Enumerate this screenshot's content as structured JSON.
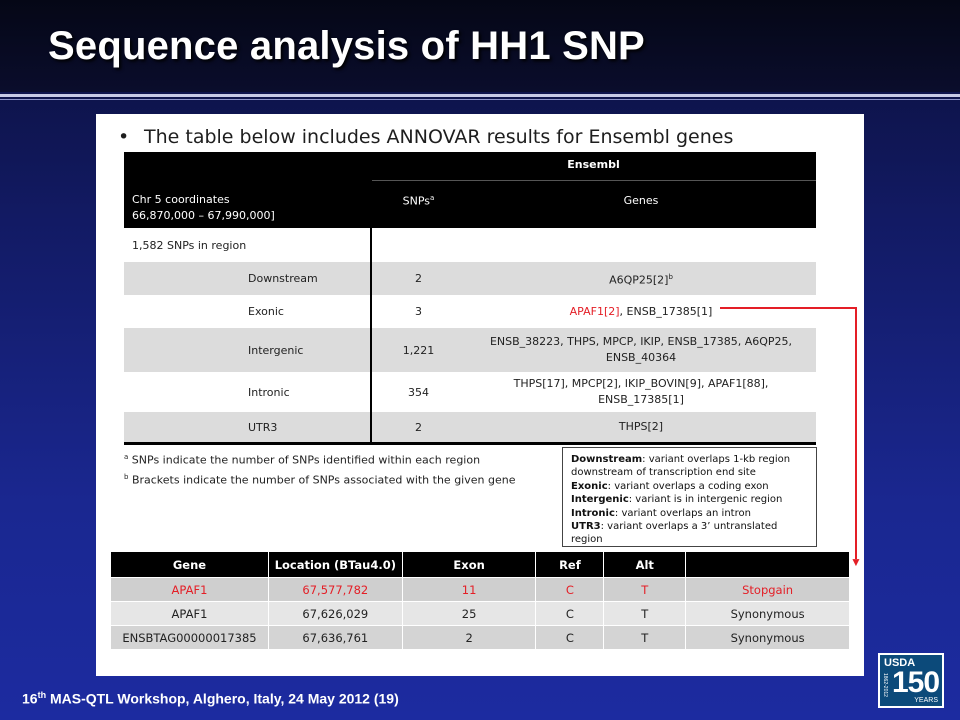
{
  "slide": {
    "title": "Sequence analysis of HH1 SNP",
    "bullet": "The table below includes ANNOVAR results for Ensembl genes",
    "footer_main": "16",
    "footer_sup": "th",
    "footer_rest": " MAS-QTL Workshop, Alghero, Italy, 24 May 2012 (19)"
  },
  "annovar": {
    "ensembl_header": "Ensembl",
    "chr_line1": "Chr 5 coordinates",
    "chr_line2": "66,870,000 – 67,990,000]",
    "snps_header": "SNPs",
    "snps_header_sup": "a",
    "genes_header": "Genes",
    "region_count": "1,582 SNPs in region",
    "rows": [
      {
        "category": "Downstream",
        "snps": "2",
        "genes": "A6QP25[2]",
        "genes_sup": "b"
      },
      {
        "category": "Exonic",
        "snps": "3",
        "genes_red": "APAF1[2]",
        "genes_rest": ", ENSB_17385[1]"
      },
      {
        "category": "Intergenic",
        "snps": "1,221",
        "genes": "ENSB_38223, THPS, MPCP, IKIP, ENSB_17385, A6QP25, ENSB_40364"
      },
      {
        "category": "Intronic",
        "snps": "354",
        "genes": "THPS[17], MPCP[2], IKIP_BOVIN[9], APAF1[88], ENSB_17385[1]"
      },
      {
        "category": "UTR3",
        "snps": "2",
        "genes": "THPS[2]"
      }
    ],
    "footnote_a_mark": "a",
    "footnote_a": " SNPs indicate the number of SNPs identified within each region",
    "footnote_b_mark": "b",
    "footnote_b": " Brackets indicate the number of SNPs associated with the given gene"
  },
  "legend": [
    {
      "term": "Downstream",
      "desc": ": variant overlaps 1-kb region downstream of transcription end site"
    },
    {
      "term": "Exonic",
      "desc": ": variant overlaps a coding exon"
    },
    {
      "term": "Intergenic",
      "desc": ": variant is in intergenic region"
    },
    {
      "term": "Intronic",
      "desc": ": variant overlaps an intron"
    },
    {
      "term": "UTR3",
      "desc": ": variant overlaps a 3’ untranslated region"
    }
  ],
  "gene_table": {
    "headers": [
      "Gene",
      "Location (BTau4.0)",
      "Exon",
      "Ref",
      "Alt",
      ""
    ],
    "rows": [
      [
        "APAF1",
        "67,577,782",
        "11",
        "C",
        "T",
        "Stopgain"
      ],
      [
        "APAF1",
        "67,626,029",
        "25",
        "C",
        "T",
        "Synonymous"
      ],
      [
        "ENSBTAG00000017385",
        "67,636,761",
        "2",
        "C",
        "T",
        "Synonymous"
      ]
    ]
  },
  "logo": {
    "usda": "USDA",
    "number": "150",
    "years": "YEARS",
    "span": "1862-2012"
  },
  "colors": {
    "accent_red": "#e41e26",
    "background": "#1a2790",
    "table_header": "#000000"
  }
}
